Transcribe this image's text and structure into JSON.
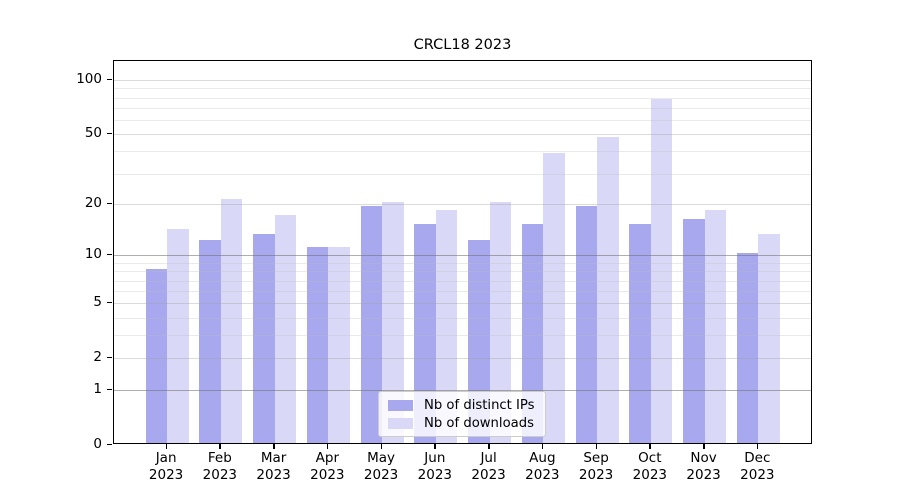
{
  "title": "CRCL18 2023",
  "legend": {
    "items": [
      {
        "label": "Nb of distinct IPs",
        "color": "#a8a8ee"
      },
      {
        "label": "Nb of downloads",
        "color": "#d9d9f7"
      }
    ]
  },
  "colors": {
    "bar_dark": "#a8a8ee",
    "bar_light": "#d9d9f7",
    "axis": "#000000",
    "grid_strong": "#b0b0b0",
    "grid_labeled": "#d8d8d8",
    "grid_minor": "#ececec"
  },
  "chart_data": {
    "type": "bar",
    "title": "CRCL18 2023",
    "categories": [
      "Jan 2023",
      "Feb 2023",
      "Mar 2023",
      "Apr 2023",
      "May 2023",
      "Jun 2023",
      "Jul 2023",
      "Aug 2023",
      "Sep 2023",
      "Oct 2023",
      "Nov 2023",
      "Dec 2023"
    ],
    "series": [
      {
        "name": "Nb of distinct IPs",
        "color": "#a8a8ee",
        "values": [
          8,
          12,
          13,
          11,
          19,
          15,
          12,
          15,
          19,
          15,
          16,
          10
        ]
      },
      {
        "name": "Nb of downloads",
        "color": "#d9d9f7",
        "values": [
          14,
          21,
          17,
          11,
          20,
          18,
          20,
          38,
          47,
          77,
          18,
          13
        ]
      }
    ],
    "xlabel": "",
    "ylabel": "",
    "yscale": "log1p",
    "ylim": [
      0,
      128
    ],
    "ytick_values": [
      0,
      1,
      2,
      5,
      10,
      20,
      50,
      100
    ],
    "ytick_labels": [
      "0",
      "1",
      "2",
      "5",
      "10",
      "20",
      "50",
      "100"
    ],
    "strong_grid_values": [
      1,
      10
    ],
    "minor_grid_values": [
      3,
      4,
      6,
      7,
      8,
      9,
      30,
      40,
      60,
      70,
      80,
      90
    ],
    "grid": true,
    "legend_position": "lower center"
  }
}
